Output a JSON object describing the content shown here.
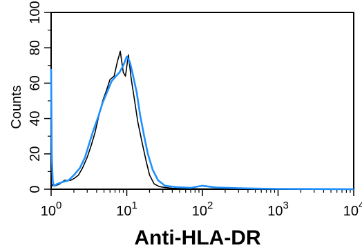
{
  "chart_data": {
    "type": "line",
    "title": "Anti-HLA-DR",
    "xlabel": "",
    "ylabel": "Counts",
    "x_scale": "log",
    "xlim": [
      1,
      10000
    ],
    "ylim": [
      0,
      100
    ],
    "x_ticks": [
      {
        "value": 1,
        "base": "10",
        "exp": "0"
      },
      {
        "value": 10,
        "base": "10",
        "exp": "1"
      },
      {
        "value": 100,
        "base": "10",
        "exp": "2"
      },
      {
        "value": 1000,
        "base": "10",
        "exp": "3"
      },
      {
        "value": 10000,
        "base": "10",
        "exp": "4"
      }
    ],
    "y_ticks": [
      "0",
      "20",
      "40",
      "60",
      "80",
      "100"
    ],
    "grid": false,
    "legend": "none",
    "series": [
      {
        "color": "#000000",
        "x": [
          1,
          1.05,
          1.15,
          1.3,
          1.5,
          1.8,
          2.0,
          2.3,
          2.6,
          3.0,
          3.4,
          3.8,
          4.2,
          4.8,
          5.4,
          6.0,
          6.8,
          7.5,
          8.2,
          9.0,
          9.6,
          10.5,
          11.5,
          12.5,
          14,
          16,
          18,
          20,
          23,
          27,
          32,
          40,
          60,
          100,
          200,
          500,
          1000,
          3000,
          10000
        ],
        "y": [
          1,
          3,
          2,
          3,
          5,
          5,
          6,
          8,
          12,
          18,
          25,
          32,
          40,
          50,
          56,
          62,
          64,
          72,
          78,
          66,
          64,
          76,
          62,
          52,
          38,
          26,
          16,
          8,
          3,
          1.5,
          1,
          0.5,
          0.3,
          0.2,
          0.2,
          0.1,
          0.1,
          0,
          0
        ]
      },
      {
        "color": "#1e90ff",
        "x": [
          1,
          1.02,
          1.05,
          1.08,
          1.12,
          1.2,
          1.4,
          1.7,
          2.0,
          2.4,
          2.8,
          3.2,
          3.6,
          4.2,
          4.8,
          5.5,
          6.3,
          7.2,
          8.0,
          9.0,
          10.0,
          11.0,
          12.0,
          13.5,
          15,
          17,
          19,
          22,
          26,
          32,
          45,
          70,
          100,
          150,
          300,
          600,
          1000,
          3000,
          10000
        ],
        "y": [
          68,
          20,
          5,
          2,
          2,
          3,
          4,
          5,
          8,
          12,
          18,
          26,
          33,
          41,
          49,
          55,
          61,
          64,
          66,
          70,
          75,
          72,
          65,
          55,
          42,
          30,
          20,
          11,
          5,
          2,
          1.2,
          0.8,
          2,
          1,
          0.6,
          0.3,
          0.2,
          0.1,
          0
        ]
      }
    ]
  }
}
